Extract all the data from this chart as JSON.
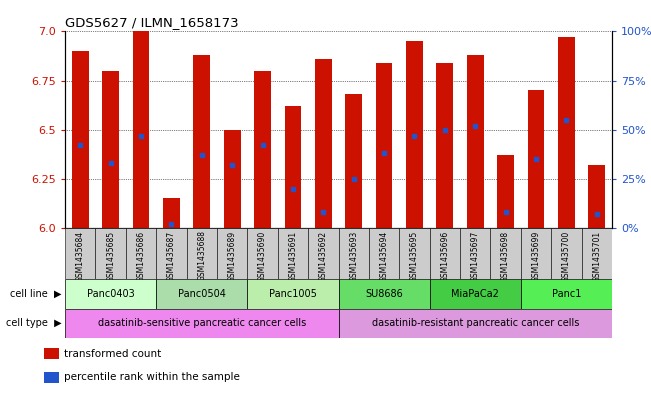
{
  "title": "GDS5627 / ILMN_1658173",
  "samples": [
    "GSM1435684",
    "GSM1435685",
    "GSM1435686",
    "GSM1435687",
    "GSM1435688",
    "GSM1435689",
    "GSM1435690",
    "GSM1435691",
    "GSM1435692",
    "GSM1435693",
    "GSM1435694",
    "GSM1435695",
    "GSM1435696",
    "GSM1435697",
    "GSM1435698",
    "GSM1435699",
    "GSM1435700",
    "GSM1435701"
  ],
  "bar_values": [
    6.9,
    6.8,
    7.0,
    6.15,
    6.88,
    6.5,
    6.8,
    6.62,
    6.86,
    6.68,
    6.84,
    6.95,
    6.84,
    6.88,
    6.37,
    6.7,
    6.97,
    6.32
  ],
  "percentile_values": [
    6.42,
    6.33,
    6.47,
    6.02,
    6.37,
    6.32,
    6.42,
    6.2,
    6.08,
    6.25,
    6.38,
    6.47,
    6.5,
    6.52,
    6.08,
    6.35,
    6.55,
    6.07
  ],
  "ylim_left": [
    6.0,
    7.0
  ],
  "ylim_right": [
    0,
    100
  ],
  "yticks_left": [
    6.0,
    6.25,
    6.5,
    6.75,
    7.0
  ],
  "yticks_right": [
    0,
    25,
    50,
    75,
    100
  ],
  "ytick_labels_right": [
    "0%",
    "25%",
    "50%",
    "75%",
    "100%"
  ],
  "bar_color": "#cc1100",
  "percentile_color": "#2255cc",
  "cell_lines": [
    {
      "label": "Panc0403",
      "start": 0,
      "end": 3,
      "color": "#ccffcc"
    },
    {
      "label": "Panc0504",
      "start": 3,
      "end": 6,
      "color": "#aaddaa"
    },
    {
      "label": "Panc1005",
      "start": 6,
      "end": 9,
      "color": "#bbeeaa"
    },
    {
      "label": "SU8686",
      "start": 9,
      "end": 12,
      "color": "#66dd66"
    },
    {
      "label": "MiaPaCa2",
      "start": 12,
      "end": 15,
      "color": "#44cc44"
    },
    {
      "label": "Panc1",
      "start": 15,
      "end": 18,
      "color": "#55ee55"
    }
  ],
  "cell_types": [
    {
      "label": "dasatinib-sensitive pancreatic cancer cells",
      "start": 0,
      "end": 9,
      "color": "#ee88ee"
    },
    {
      "label": "dasatinib-resistant pancreatic cancer cells",
      "start": 9,
      "end": 18,
      "color": "#dd99dd"
    }
  ],
  "legend_items": [
    {
      "label": "transformed count",
      "color": "#cc1100",
      "marker": "s"
    },
    {
      "label": "percentile rank within the sample",
      "color": "#2255cc",
      "marker": "s"
    }
  ],
  "bar_width": 0.55,
  "left_label_color": "#cc1100",
  "right_label_color": "#2255cc",
  "sample_bg": "#cccccc",
  "cell_line_row_label": "cell line",
  "cell_type_row_label": "cell type"
}
